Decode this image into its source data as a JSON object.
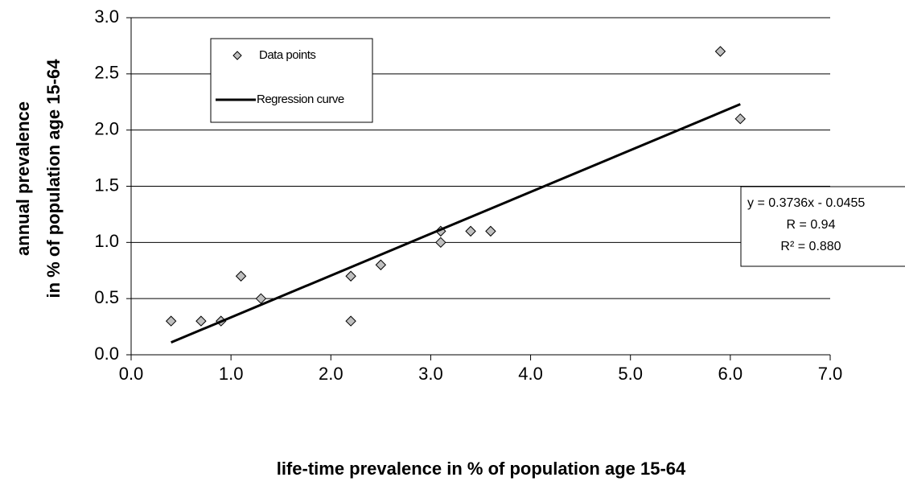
{
  "chart_data": {
    "type": "scatter",
    "xlabel": "life-time prevalence in % of population age 15-64",
    "ylabel": [
      "annual prevalence",
      "in % of population age 15-64"
    ],
    "xlim": [
      0,
      7
    ],
    "ylim": [
      0,
      3
    ],
    "xticks": [
      {
        "value": 0,
        "label": "0.0"
      },
      {
        "value": 1,
        "label": "1.0"
      },
      {
        "value": 2,
        "label": "2.0"
      },
      {
        "value": 3,
        "label": "3.0"
      },
      {
        "value": 4,
        "label": "4.0"
      },
      {
        "value": 5,
        "label": "5.0"
      },
      {
        "value": 6,
        "label": "6.0"
      },
      {
        "value": 7,
        "label": "7.0"
      }
    ],
    "yticks": [
      {
        "value": 0,
        "label": "0.0"
      },
      {
        "value": 0.5,
        "label": "0.5"
      },
      {
        "value": 1,
        "label": "1.0"
      },
      {
        "value": 1.5,
        "label": "1.5"
      },
      {
        "value": 2,
        "label": "2.0"
      },
      {
        "value": 2.5,
        "label": "2.5"
      },
      {
        "value": 3,
        "label": "3.0"
      }
    ],
    "grid": true,
    "legend": "upper left",
    "series": [
      {
        "name": "Data points",
        "color": "#bfbfbf",
        "x": [
          0.4,
          0.7,
          0.9,
          1.1,
          1.3,
          2.2,
          2.2,
          2.5,
          3.1,
          3.1,
          3.4,
          3.6,
          5.9,
          6.1
        ],
        "values": [
          0.3,
          0.3,
          0.3,
          0.7,
          0.5,
          0.7,
          0.3,
          0.8,
          1.1,
          1.0,
          1.1,
          1.1,
          2.7,
          2.1
        ]
      },
      {
        "name": "Regression curve",
        "color": "#000000",
        "line": true,
        "x": [
          0.4,
          6.1
        ],
        "values": [
          0.11,
          2.23
        ]
      }
    ],
    "annotation": [
      "y = 0.3736x - 0.0455",
      "R = 0.94",
      "R² = 0.880"
    ]
  }
}
